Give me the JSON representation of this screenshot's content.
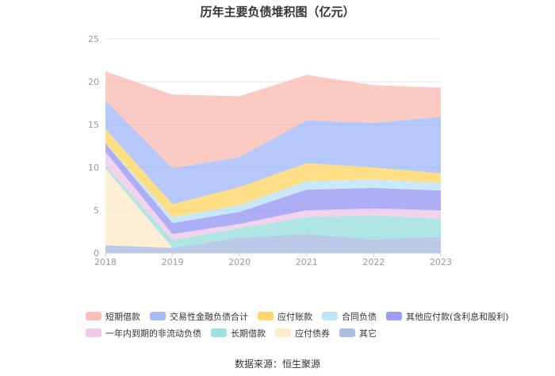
{
  "chart_data": {
    "type": "area",
    "stacked": true,
    "title": "历年主要负债堆积图（亿元）",
    "x": [
      "2018",
      "2019",
      "2020",
      "2021",
      "2022",
      "2023"
    ],
    "ylim": [
      0,
      25
    ],
    "yticks": [
      "0",
      "5",
      "10",
      "15",
      "20",
      "25"
    ],
    "grid": true,
    "legend_position": "bottom",
    "series": [
      {
        "name": "其它",
        "color": "#8fa8d6",
        "values": [
          0.9,
          0.6,
          1.8,
          2.2,
          1.6,
          1.9
        ]
      },
      {
        "name": "应付债券",
        "color": "#fde4b8",
        "values": [
          9.0,
          0.0,
          0.0,
          0.0,
          0.0,
          0.0
        ]
      },
      {
        "name": "长期借款",
        "color": "#7fd5d5",
        "values": [
          0.3,
          0.9,
          1.1,
          2.0,
          2.8,
          2.1
        ]
      },
      {
        "name": "一年内到期的非流动负债",
        "color": "#e8b8e0",
        "values": [
          1.6,
          0.7,
          0.5,
          0.8,
          0.8,
          1.0
        ]
      },
      {
        "name": "其他应付款(含利息和股利)",
        "color": "#7b7cf0",
        "values": [
          1.0,
          1.3,
          1.4,
          2.4,
          2.4,
          2.3
        ]
      },
      {
        "name": "合同负债",
        "color": "#a8dcf5",
        "values": [
          0.0,
          0.7,
          0.8,
          1.0,
          1.0,
          0.9
        ]
      },
      {
        "name": "应付账款",
        "color": "#ffc93c",
        "values": [
          1.7,
          1.5,
          2.1,
          2.1,
          1.4,
          1.1
        ]
      },
      {
        "name": "交易性金融负债合计",
        "color": "#8aa7f7",
        "values": [
          3.3,
          4.2,
          3.5,
          5.0,
          5.2,
          6.6
        ]
      },
      {
        "name": "短期借款",
        "color": "#f9a99c",
        "values": [
          3.4,
          8.6,
          7.1,
          5.3,
          4.4,
          3.4
        ]
      }
    ]
  },
  "legend_rows": [
    [
      "短期借款",
      "交易性金融负债合计",
      "应付账款",
      "合同负债",
      "其他应付款(含利息和股利)"
    ],
    [
      "一年内到期的非流动负债",
      "长期借款",
      "应付债券",
      "其它"
    ]
  ],
  "source": "数据来源：恒生聚源"
}
